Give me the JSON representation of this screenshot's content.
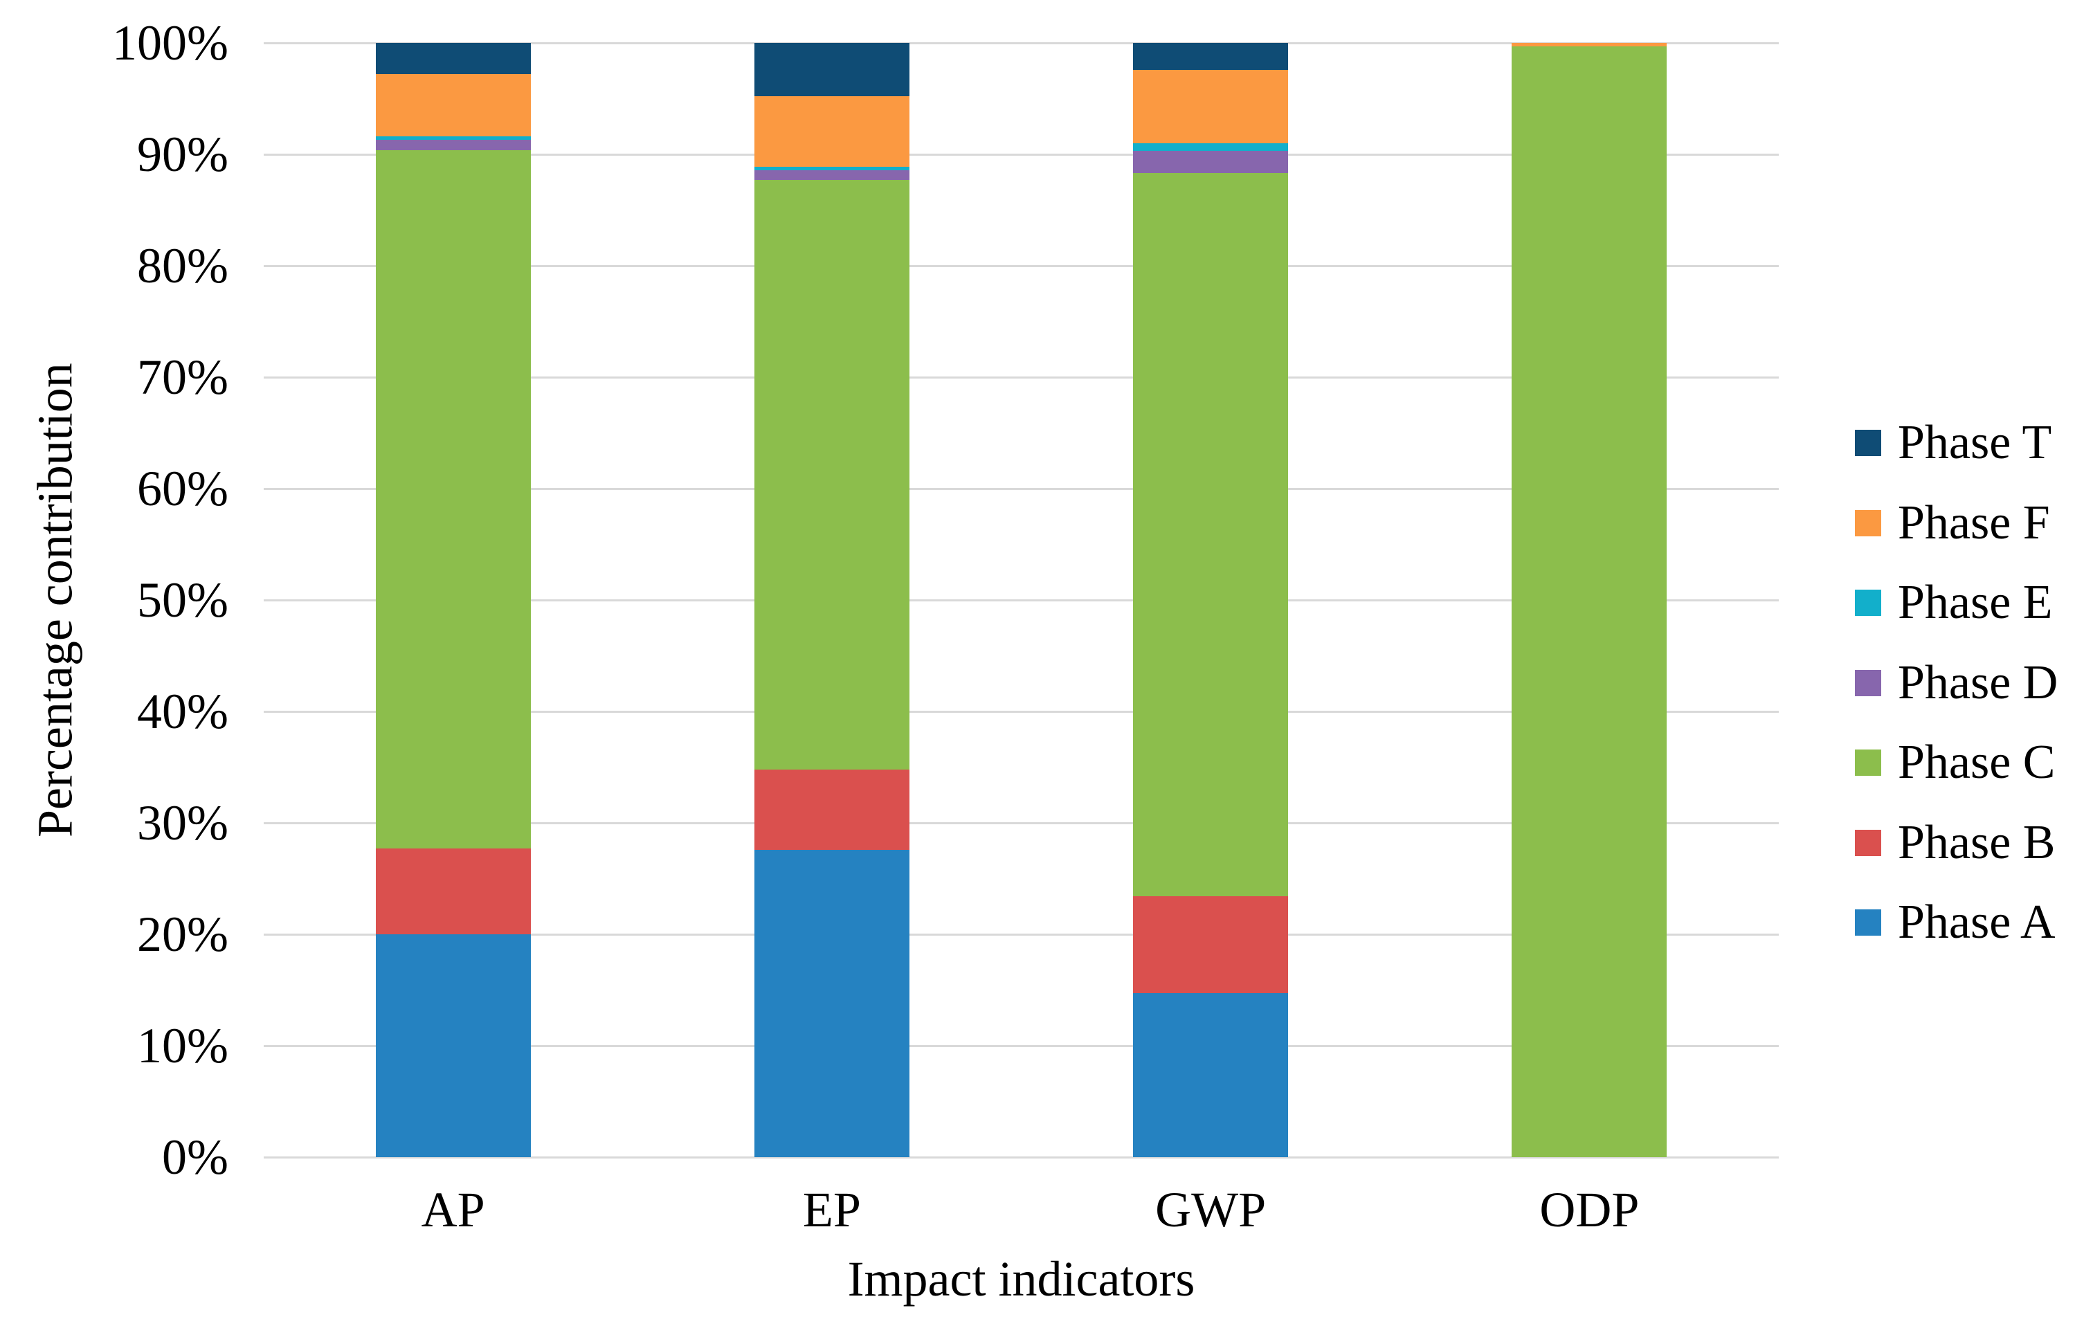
{
  "chart_data": {
    "type": "bar",
    "stacked": true,
    "title": "",
    "xlabel": "Impact indicators",
    "ylabel": "Percentage contribution",
    "categories": [
      "AP",
      "EP",
      "GWP",
      "ODP"
    ],
    "series": [
      {
        "name": "Phase A",
        "color": "#2582C1",
        "values": [
          20.0,
          27.6,
          14.7,
          0.0
        ]
      },
      {
        "name": "Phase B",
        "color": "#DA504E",
        "values": [
          7.7,
          7.2,
          8.7,
          0.0
        ]
      },
      {
        "name": "Phase C",
        "color": "#8CBE4C",
        "values": [
          62.7,
          52.9,
          64.9,
          99.7
        ]
      },
      {
        "name": "Phase D",
        "color": "#8766AD",
        "values": [
          0.9,
          0.9,
          2.0,
          0.0
        ]
      },
      {
        "name": "Phase E",
        "color": "#12AFCB",
        "values": [
          0.3,
          0.3,
          0.7,
          0.0
        ]
      },
      {
        "name": "Phase F",
        "color": "#FB9941",
        "values": [
          5.6,
          6.3,
          6.6,
          0.3
        ]
      },
      {
        "name": "Phase T",
        "color": "#0F4C75",
        "values": [
          2.8,
          4.8,
          2.4,
          0.0
        ]
      }
    ],
    "legend_order": [
      "Phase T",
      "Phase F",
      "Phase E",
      "Phase D",
      "Phase C",
      "Phase B",
      "Phase A"
    ],
    "y_ticks": [
      "100%",
      "90%",
      "80%",
      "70%",
      "60%",
      "50%",
      "40%",
      "30%",
      "20%",
      "10%",
      "0%"
    ],
    "ylim": [
      0,
      100
    ],
    "grid": "horizontal",
    "gridline_color": "#D9D9D9",
    "legend_position": "right"
  }
}
